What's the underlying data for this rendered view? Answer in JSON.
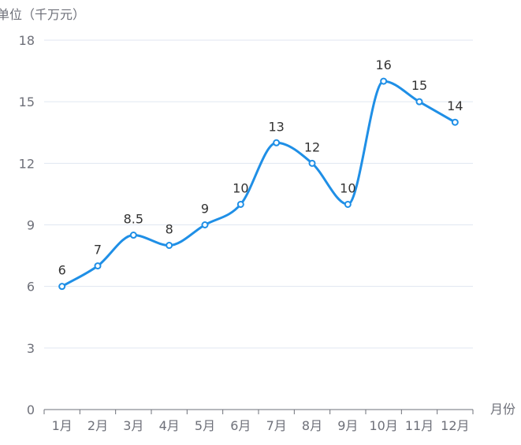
{
  "chart_data": {
    "type": "line",
    "smooth": true,
    "ylabel": "单位（千万元）",
    "xlabel": "月份",
    "categories": [
      "1月",
      "2月",
      "3月",
      "4月",
      "5月",
      "6月",
      "7月",
      "8月",
      "9月",
      "10月",
      "11月",
      "12月"
    ],
    "series": [
      {
        "values": [
          6,
          7,
          8.5,
          8,
          9,
          10,
          13,
          12,
          10,
          16,
          15,
          14
        ],
        "value_labels": [
          "6",
          "7",
          "8.5",
          "8",
          "9",
          "10",
          "13",
          "12",
          "10",
          "16",
          "15",
          "14"
        ]
      }
    ],
    "ylim": [
      0,
      18
    ],
    "yticks": [
      0,
      3,
      6,
      9,
      12,
      15,
      18
    ],
    "ytick_labels": [
      "0",
      "3",
      "6",
      "9",
      "12",
      "15",
      "18"
    ],
    "grid": true,
    "colors": {
      "line": "#1f8fe6",
      "grid": "#e0e6f1",
      "axis": "#6e7079",
      "text": "#333333",
      "tick_text": "#6e7079"
    }
  }
}
